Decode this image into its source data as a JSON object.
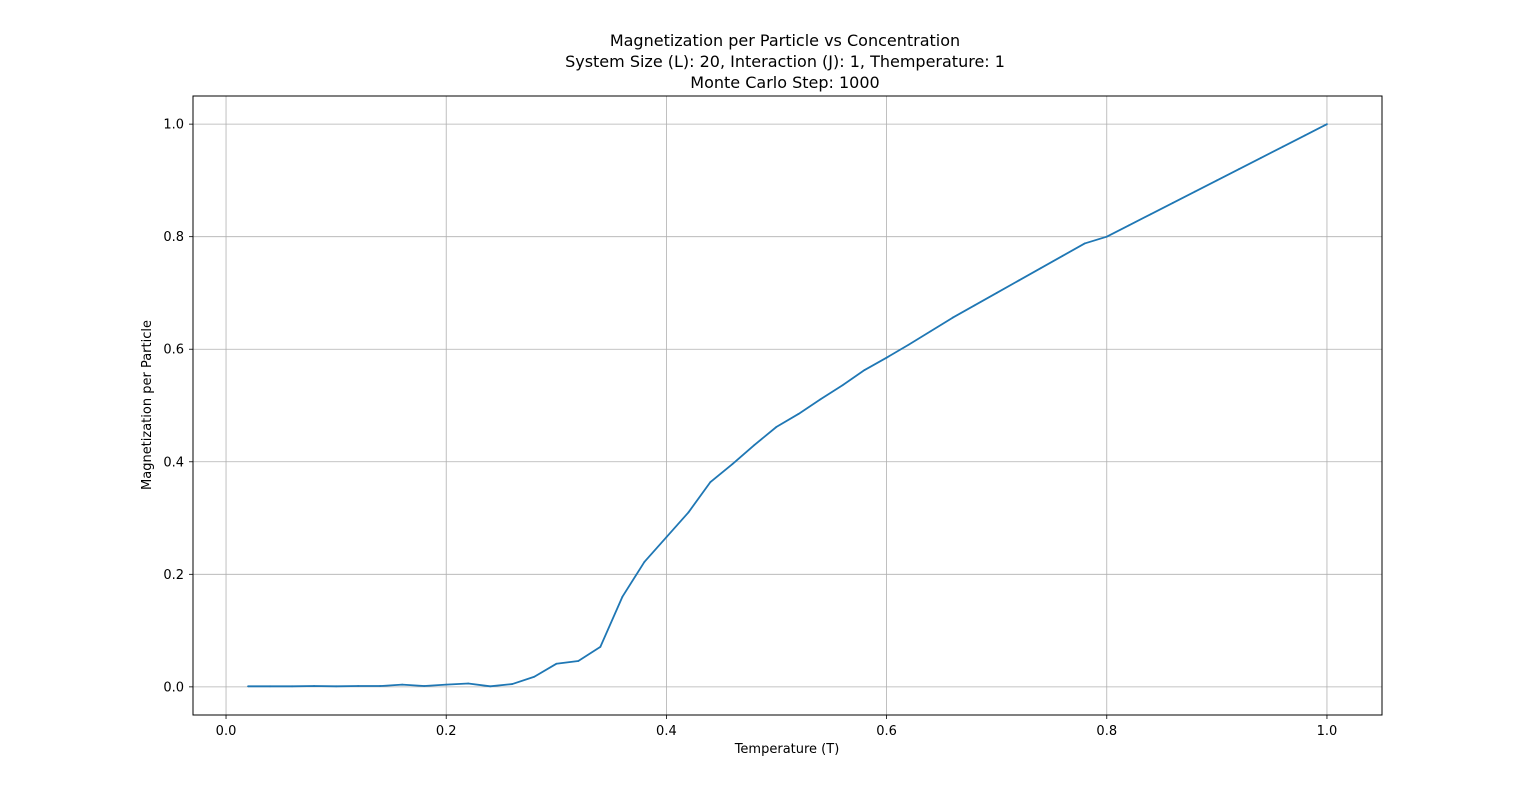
{
  "chart_data": {
    "type": "line",
    "title": [
      "Magnetization per Particle vs Concentration",
      "System Size (L): 20, Interaction (J): 1, Themperature: 1",
      "Monte Carlo Step: 1000"
    ],
    "xlabel": "Temperature (T)",
    "ylabel": "Magnetization per Particle",
    "xlim": [
      -0.03,
      1.05
    ],
    "ylim": [
      -0.05,
      1.05
    ],
    "xticks": [
      "0.0",
      "0.2",
      "0.4",
      "0.6",
      "0.8",
      "1.0"
    ],
    "yticks": [
      "0.0",
      "0.2",
      "0.4",
      "0.6",
      "0.8",
      "1.0"
    ],
    "grid": true,
    "series": [
      {
        "color": "#1f77b4",
        "x": [
          0.02,
          0.04,
          0.06,
          0.08,
          0.1,
          0.12,
          0.14,
          0.16,
          0.18,
          0.2,
          0.22,
          0.24,
          0.26,
          0.28,
          0.3,
          0.32,
          0.34,
          0.36,
          0.38,
          0.4,
          0.42,
          0.44,
          0.46,
          0.48,
          0.5,
          0.52,
          0.54,
          0.56,
          0.58,
          0.6,
          0.62,
          0.64,
          0.66,
          0.68,
          0.7,
          0.72,
          0.74,
          0.76,
          0.78,
          0.8,
          0.82,
          0.84,
          0.86,
          0.88,
          0.9,
          0.92,
          0.94,
          0.96,
          0.98,
          1.0
        ],
        "y": [
          0.001,
          0.001,
          0.001,
          0.0015,
          0.001,
          0.0015,
          0.0015,
          0.004,
          0.0015,
          0.004,
          0.006,
          0.001,
          0.005,
          0.018,
          0.041,
          0.046,
          0.071,
          0.16,
          0.222,
          0.266,
          0.31,
          0.364,
          0.396,
          0.43,
          0.462,
          0.485,
          0.511,
          0.536,
          0.563,
          0.585,
          0.608,
          0.632,
          0.656,
          0.678,
          0.7,
          0.722,
          0.744,
          0.766,
          0.788,
          0.8,
          0.82,
          0.84,
          0.86,
          0.88,
          0.9,
          0.92,
          0.94,
          0.96,
          0.98,
          1.0
        ]
      }
    ]
  }
}
